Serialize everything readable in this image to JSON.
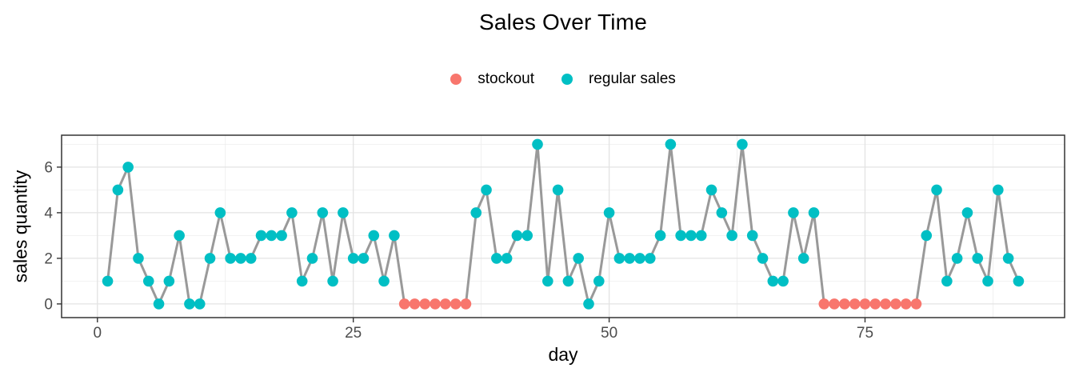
{
  "colors": {
    "stockout": "#F8766D",
    "regular": "#00BFC4",
    "line": "#999999",
    "grid_major": "#E3E3E3",
    "grid_minor": "#EDEDED",
    "panel_border": "#333333",
    "tick_text": "#4D4D4D"
  },
  "chart_data": {
    "type": "line",
    "title": "Sales Over Time",
    "xlabel": "day",
    "ylabel": "sales quantity",
    "legend_position": "top-center",
    "legend": [
      {
        "label": "stockout",
        "color": "#F8766D"
      },
      {
        "label": "regular sales",
        "color": "#00BFC4"
      }
    ],
    "grid": "on",
    "x_ticks": [
      0,
      25,
      50,
      75
    ],
    "y_ticks": [
      0,
      2,
      4,
      6
    ],
    "x_minor_gridlines": [
      12.5,
      37.5,
      62.5,
      87.5
    ],
    "y_minor_gridlines": [
      1,
      3,
      5,
      7
    ],
    "xlim": [
      -3.5,
      94.5
    ],
    "ylim": [
      -0.6,
      7.4
    ],
    "days": [
      1,
      2,
      3,
      4,
      5,
      6,
      7,
      8,
      9,
      10,
      11,
      12,
      13,
      14,
      15,
      16,
      17,
      18,
      19,
      20,
      21,
      22,
      23,
      24,
      25,
      26,
      27,
      28,
      29,
      30,
      31,
      32,
      33,
      34,
      35,
      36,
      37,
      38,
      39,
      40,
      41,
      42,
      43,
      44,
      45,
      46,
      47,
      48,
      49,
      50,
      51,
      52,
      53,
      54,
      55,
      56,
      57,
      58,
      59,
      60,
      61,
      62,
      63,
      64,
      65,
      66,
      67,
      68,
      69,
      70,
      71,
      72,
      73,
      74,
      75,
      76,
      77,
      78,
      79,
      80,
      81,
      82,
      83,
      84,
      85,
      86,
      87,
      88,
      89,
      90
    ],
    "values": [
      1,
      5,
      6,
      2,
      1,
      0,
      1,
      3,
      0,
      0,
      2,
      4,
      2,
      2,
      2,
      3,
      3,
      3,
      4,
      1,
      2,
      4,
      1,
      4,
      2,
      2,
      3,
      1,
      3,
      0,
      0,
      0,
      0,
      0,
      0,
      0,
      4,
      5,
      2,
      2,
      3,
      3,
      7,
      1,
      5,
      1,
      2,
      0,
      1,
      4,
      2,
      2,
      2,
      2,
      3,
      7,
      3,
      3,
      3,
      5,
      4,
      3,
      7,
      3,
      2,
      1,
      1,
      4,
      2,
      4,
      0,
      0,
      0,
      0,
      0,
      0,
      0,
      0,
      0,
      0,
      3,
      5,
      1,
      2,
      4,
      2,
      1,
      5,
      2,
      1
    ],
    "stockout_days": [
      30,
      31,
      32,
      33,
      34,
      35,
      36,
      71,
      72,
      73,
      74,
      75,
      76,
      77,
      78,
      79,
      80
    ]
  }
}
